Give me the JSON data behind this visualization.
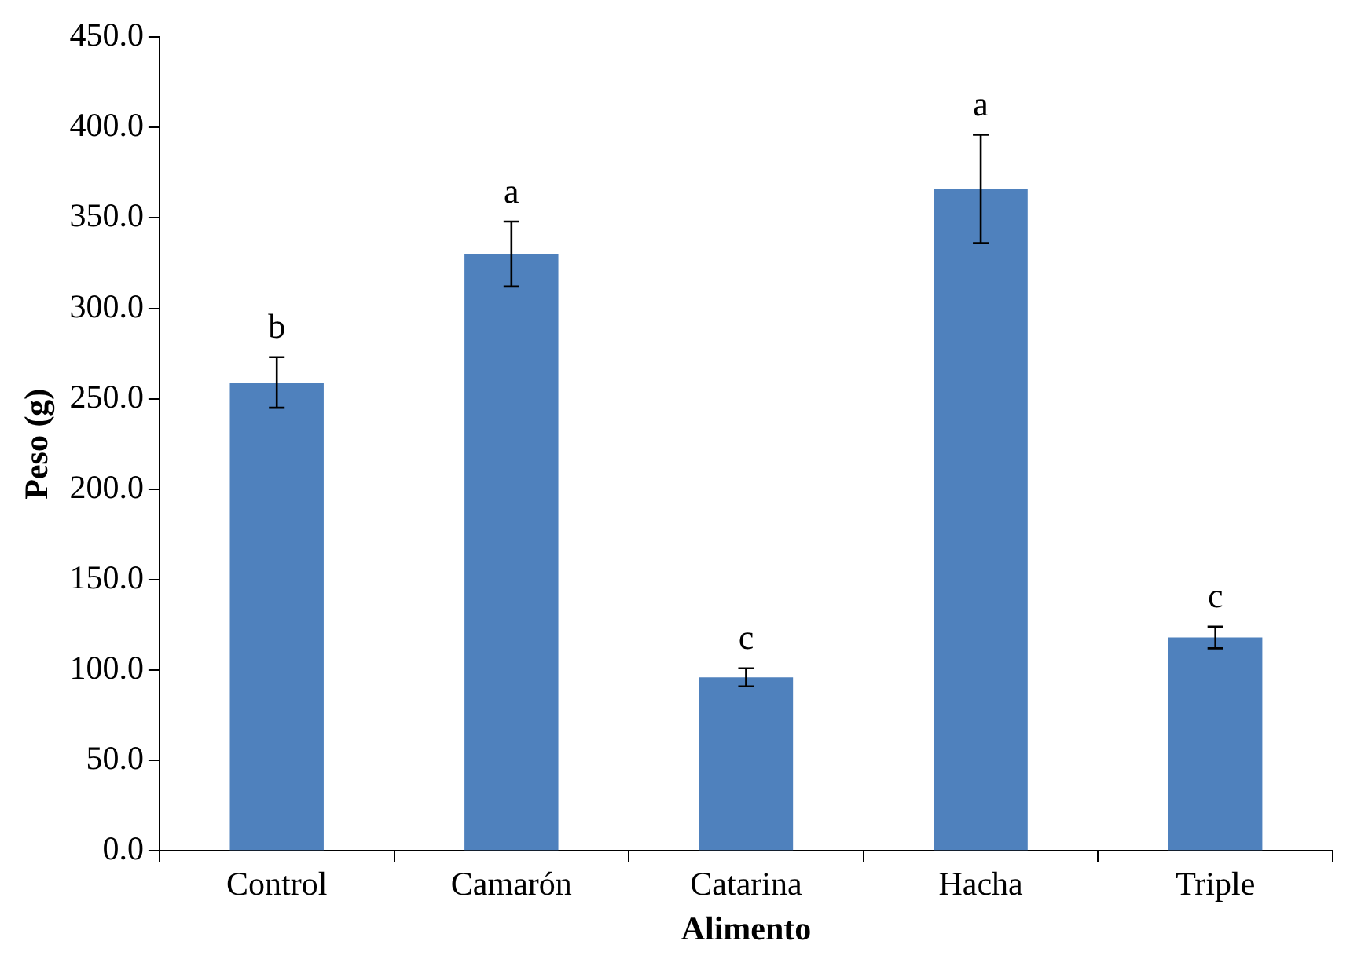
{
  "chart_data": {
    "type": "bar",
    "xlabel": "Alimento",
    "ylabel": "Peso (g)",
    "categories": [
      "Control",
      "Camarón",
      "Catarina",
      "Hacha",
      "Triple"
    ],
    "values": [
      259,
      330,
      96,
      366,
      118
    ],
    "errors": [
      14,
      18,
      5,
      30,
      6
    ],
    "color": "#4f81bd",
    "ylim": [
      0,
      450
    ],
    "yticks": [
      {
        "value": 0,
        "label": "0.0"
      },
      {
        "value": 50,
        "label": "50.0"
      },
      {
        "value": 100,
        "label": "100.0"
      },
      {
        "value": 150,
        "label": "150.0"
      },
      {
        "value": 200,
        "label": "200.0"
      },
      {
        "value": 250,
        "label": "250.0"
      },
      {
        "value": 300,
        "label": "300.0"
      },
      {
        "value": 350,
        "label": "350.0"
      },
      {
        "value": 400,
        "label": "400.0"
      },
      {
        "value": 450,
        "label": "450.0"
      }
    ],
    "annotations": [
      "b",
      "a",
      "c",
      "a",
      "c"
    ],
    "grid": false,
    "legend": false
  }
}
